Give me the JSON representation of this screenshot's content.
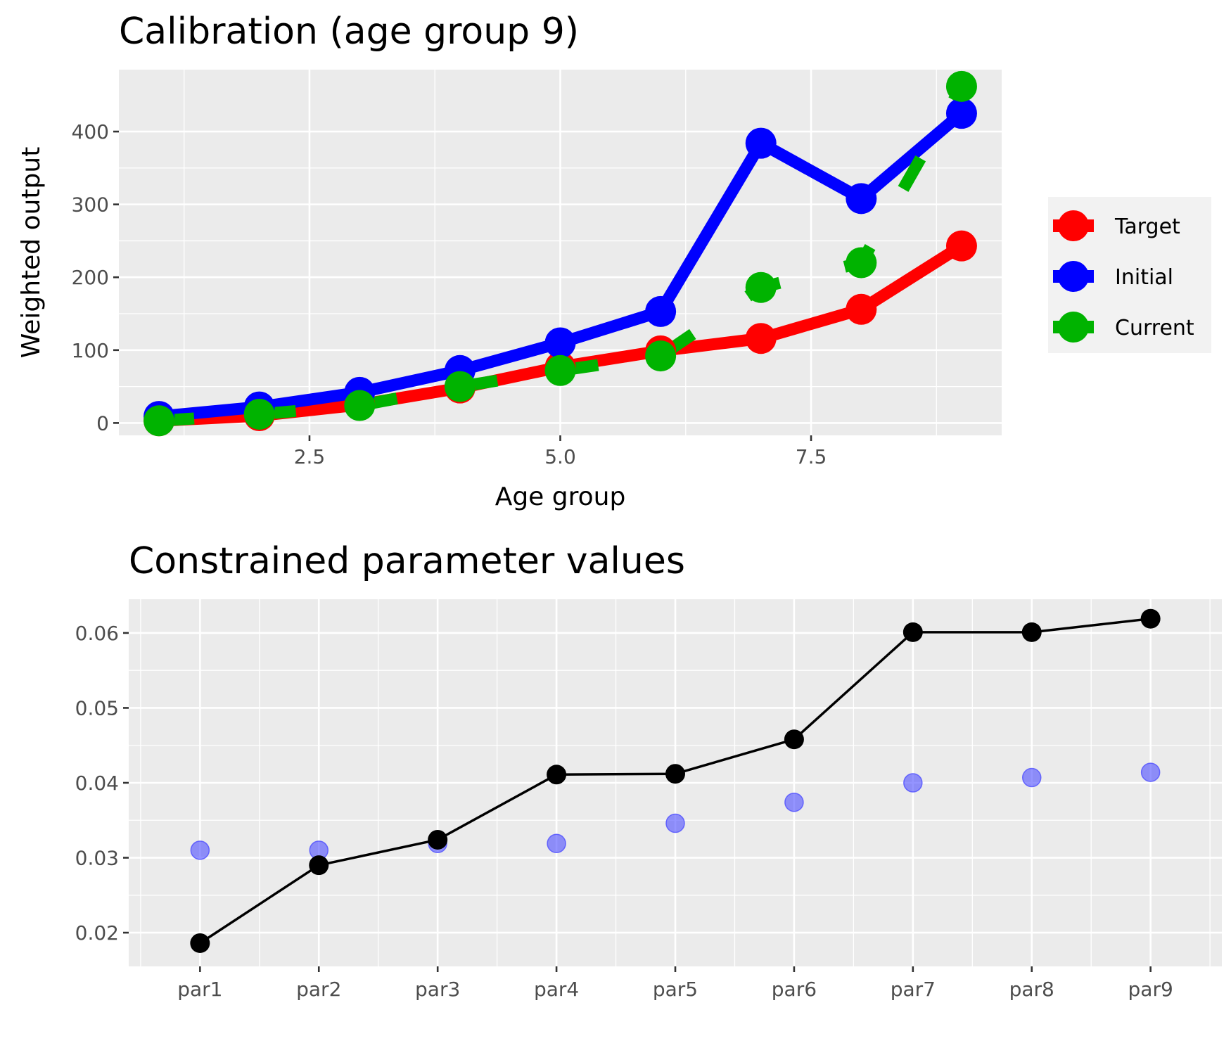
{
  "chart_data": [
    {
      "type": "line",
      "title": "Calibration (age group 9)",
      "xlabel": "Age group",
      "ylabel": "Weighted output",
      "x": [
        1,
        2,
        3,
        4,
        5,
        6,
        7,
        8,
        9
      ],
      "xlim": [
        0.6,
        9.4
      ],
      "ylim": [
        -17,
        485
      ],
      "x_ticks": [
        2.5,
        5.0,
        7.5
      ],
      "x_tick_labels": [
        "2.5",
        "5.0",
        "7.5"
      ],
      "y_ticks": [
        0,
        100,
        200,
        300,
        400
      ],
      "y_tick_labels": [
        "0",
        "100",
        "200",
        "300",
        "400"
      ],
      "grid": true,
      "legend_position": "right",
      "series": [
        {
          "name": "Target",
          "color": "#ff0000",
          "line": "solid",
          "values": [
            3,
            10,
            25,
            48,
            77,
            99,
            116,
            156,
            243
          ]
        },
        {
          "name": "Initial",
          "color": "#0000ff",
          "line": "solid",
          "values": [
            9,
            22,
            42,
            72,
            110,
            153,
            384,
            308,
            425
          ]
        },
        {
          "name": "Current",
          "color": "#00b300",
          "line": "dashed",
          "values": [
            3,
            12,
            24,
            50,
            72,
            92,
            186,
            220,
            462
          ]
        }
      ]
    },
    {
      "type": "line",
      "title": "Constrained parameter values",
      "xlabel": "",
      "ylabel": "",
      "categories": [
        "par1",
        "par2",
        "par3",
        "par4",
        "par5",
        "par6",
        "par7",
        "par8",
        "par9"
      ],
      "ylim": [
        0.0155,
        0.0645
      ],
      "y_ticks": [
        0.02,
        0.03,
        0.04,
        0.05,
        0.06
      ],
      "y_tick_labels": [
        "0.02",
        "0.03",
        "0.04",
        "0.05",
        "0.06"
      ],
      "grid": true,
      "series": [
        {
          "color": "#000000",
          "style": "line+points",
          "values": [
            0.0186,
            0.029,
            0.0324,
            0.0411,
            0.0412,
            0.0458,
            0.0601,
            0.0601,
            0.0619
          ]
        },
        {
          "color": "#4d4dff",
          "style": "points",
          "opacity": 0.6,
          "values": [
            0.031,
            0.031,
            0.0319,
            0.0319,
            0.0346,
            0.0374,
            0.04,
            0.0407,
            0.0414
          ]
        }
      ]
    }
  ]
}
